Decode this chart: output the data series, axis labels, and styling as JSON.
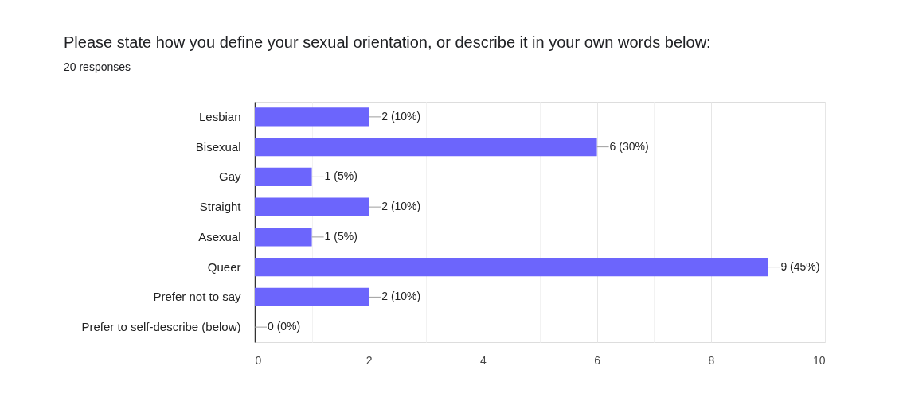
{
  "chart_data": {
    "type": "bar",
    "orientation": "horizontal",
    "title": "Please state how you define your sexual orientation, or describe it in your own words below:",
    "subtitle": "20 responses",
    "categories": [
      "Lesbian",
      "Bisexual",
      "Gay",
      "Straight",
      "Asexual",
      "Queer",
      "Prefer not to say",
      "Prefer to self-describe (below)"
    ],
    "values": [
      2,
      6,
      1,
      2,
      1,
      9,
      2,
      0
    ],
    "color": "#6c65fc",
    "value_labels": [
      "2 (10%)",
      "6 (30%)",
      "1 (5%)",
      "2 (10%)",
      "1 (5%)",
      "9 (45%)",
      "2 (10%)",
      "0 (0%)"
    ],
    "xlim": [
      0,
      10
    ],
    "xticks": [
      0,
      {
        "value": 1,
        "label": null
      },
      2,
      {
        "value": 3,
        "label": null
      },
      4,
      {
        "value": 5,
        "label": null
      },
      6,
      {
        "value": 7,
        "label": null
      },
      8,
      {
        "value": 9,
        "label": null
      },
      10
    ],
    "grid": true
  }
}
